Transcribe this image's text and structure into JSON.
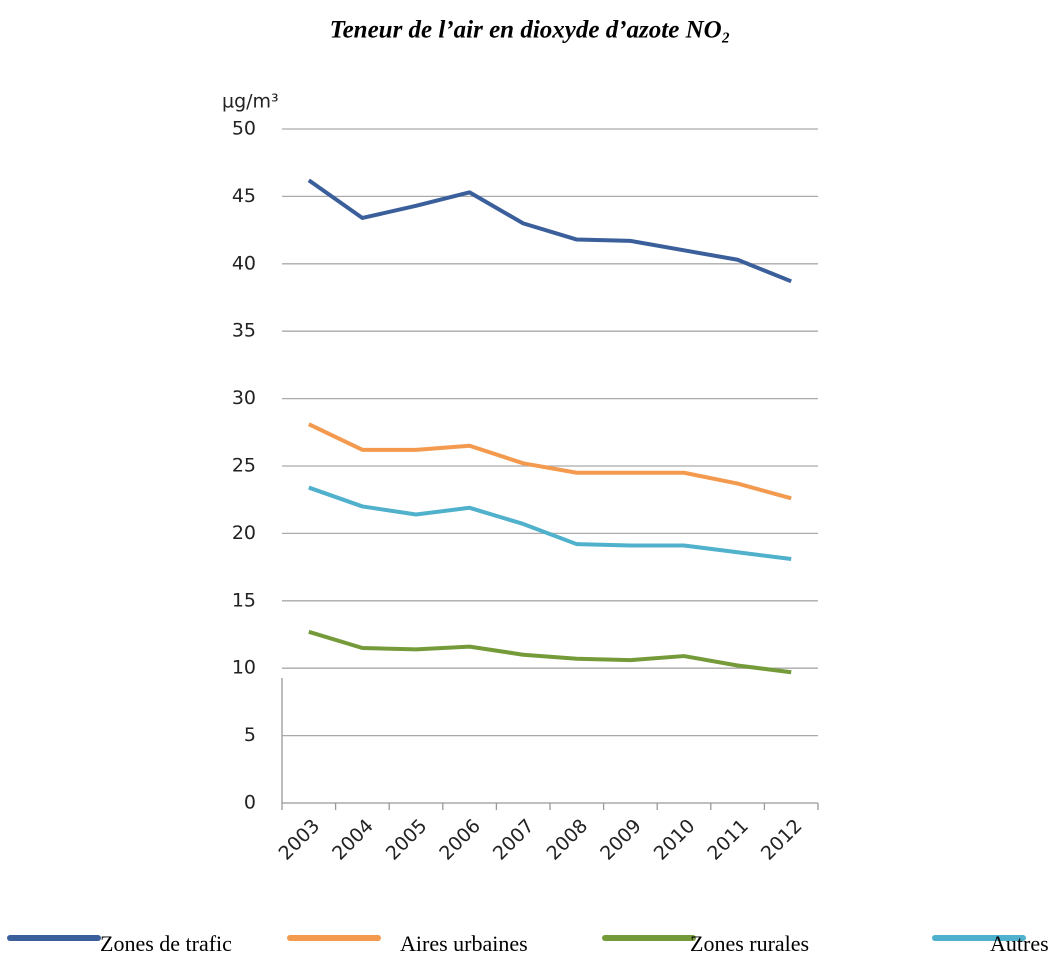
{
  "chart_data": {
    "type": "line",
    "title": "Teneur de l’air en dioxyde d’azote NO₂",
    "y_label": "µg/m³",
    "categories": [
      "2003",
      "2004",
      "2005",
      "2006",
      "2007",
      "2008",
      "2009",
      "2010",
      "2011",
      "2012"
    ],
    "series": [
      {
        "name": "Zones de trafic",
        "color": "#3a5f9b",
        "values": [
          46.2,
          43.4,
          44.3,
          45.3,
          43.0,
          41.8,
          41.7,
          41.0,
          40.3,
          38.7
        ]
      },
      {
        "name": "Aires urbaines",
        "color": "#f39a4e",
        "values": [
          28.1,
          26.2,
          26.2,
          26.5,
          25.2,
          24.5,
          24.5,
          24.5,
          23.7,
          22.6
        ]
      },
      {
        "name": "Zones rurales",
        "color": "#759a3a",
        "values": [
          12.7,
          11.5,
          11.4,
          11.6,
          11.0,
          10.7,
          10.6,
          10.9,
          10.2,
          9.7
        ]
      },
      {
        "name": "Autres",
        "color": "#4fb1cb",
        "values": [
          23.4,
          22.0,
          21.4,
          21.9,
          20.7,
          19.2,
          19.1,
          19.1,
          18.6,
          18.1
        ]
      }
    ],
    "ylim": [
      0,
      50
    ],
    "yticks": [
      0,
      5,
      10,
      15,
      20,
      25,
      30,
      35,
      40,
      45,
      50
    ],
    "grid": true
  }
}
